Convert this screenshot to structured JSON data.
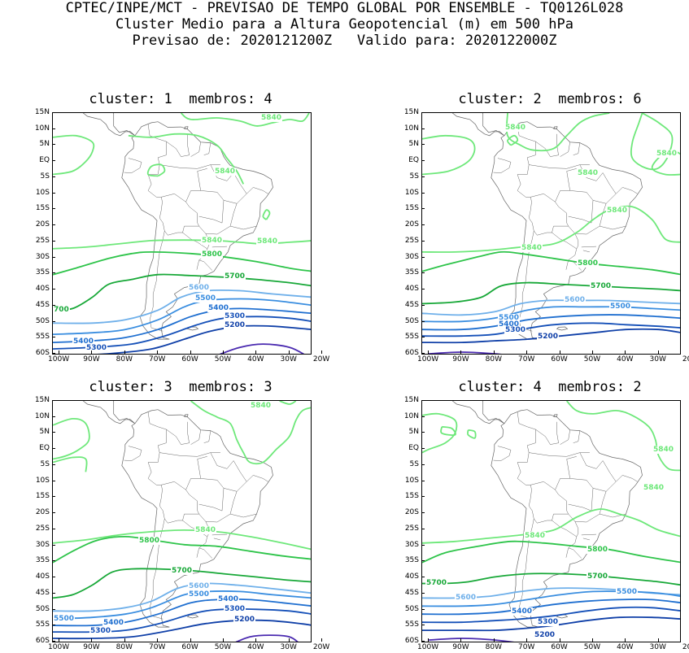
{
  "header": {
    "line1": "CPTEC/INPE/MCT - PREVISAO DE TEMPO GLOBAL POR ENSEMBLE - TQ0126L028",
    "line2": "Cluster Medio para a Altura Geopotencial (m) em 500 hPa",
    "line3": "Previsao de: 2020121200Z   Valido para: 2020122000Z"
  },
  "axes": {
    "lat_labels": [
      "15N",
      "10N",
      "5N",
      "EQ",
      "5S",
      "10S",
      "15S",
      "20S",
      "25S",
      "30S",
      "35S",
      "40S",
      "45S",
      "50S",
      "55S",
      "60S"
    ],
    "lon_labels": [
      "100W",
      "90W",
      "80W",
      "70W",
      "60W",
      "50W",
      "40W",
      "30W",
      "20W"
    ]
  },
  "colors": {
    "c5840": "#6ee87a",
    "c5800": "#2ec44a",
    "c5700": "#18a838",
    "c5600": "#6fb0ea",
    "c5500": "#3a8ee0",
    "c5400": "#1f6fd0",
    "c5300": "#1550b8",
    "c5200": "#1040a8",
    "c5100": "#4a2ab0",
    "land": "#666666"
  },
  "panels": [
    {
      "title": "cluster: 1  membros: 4",
      "labels": [
        {
          "text": "5840",
          "color": "#6ee87a"
        },
        {
          "text": "5840",
          "color": "#6ee87a"
        },
        {
          "text": "5840",
          "color": "#6ee87a"
        },
        {
          "text": "5840",
          "color": "#6ee87a"
        },
        {
          "text": "5800",
          "color": "#2ec44a"
        },
        {
          "text": "5700",
          "color": "#18a838"
        },
        {
          "text": "700",
          "color": "#18a838"
        },
        {
          "text": "5600",
          "color": "#6fb0ea"
        },
        {
          "text": "5500",
          "color": "#3a8ee0"
        },
        {
          "text": "5400",
          "color": "#1f6fd0"
        },
        {
          "text": "5300",
          "color": "#1550b8"
        },
        {
          "text": "5200",
          "color": "#1040a8"
        },
        {
          "text": "5400",
          "color": "#1f6fd0"
        },
        {
          "text": "5300",
          "color": "#1550b8"
        }
      ]
    },
    {
      "title": "cluster: 2  membros: 6",
      "labels": [
        {
          "text": "5840",
          "color": "#6ee87a"
        },
        {
          "text": "5840",
          "color": "#6ee87a"
        },
        {
          "text": "5840",
          "color": "#6ee87a"
        },
        {
          "text": "5840",
          "color": "#6ee87a"
        },
        {
          "text": "5840",
          "color": "#6ee87a"
        },
        {
          "text": "5800",
          "color": "#2ec44a"
        },
        {
          "text": "5700",
          "color": "#18a838"
        },
        {
          "text": "5600",
          "color": "#6fb0ea"
        },
        {
          "text": "5500",
          "color": "#3a8ee0"
        },
        {
          "text": "5500",
          "color": "#3a8ee0"
        },
        {
          "text": "5400",
          "color": "#1f6fd0"
        },
        {
          "text": "5300",
          "color": "#1550b8"
        },
        {
          "text": "5200",
          "color": "#1040a8"
        }
      ]
    },
    {
      "title": "cluster: 3  membros: 3",
      "labels": [
        {
          "text": "5840",
          "color": "#6ee87a"
        },
        {
          "text": "5840",
          "color": "#6ee87a"
        },
        {
          "text": "5800",
          "color": "#2ec44a"
        },
        {
          "text": "5700",
          "color": "#18a838"
        },
        {
          "text": "5600",
          "color": "#6fb0ea"
        },
        {
          "text": "5500",
          "color": "#3a8ee0"
        },
        {
          "text": "5500",
          "color": "#3a8ee0"
        },
        {
          "text": "5400",
          "color": "#1f6fd0"
        },
        {
          "text": "5400",
          "color": "#1f6fd0"
        },
        {
          "text": "5300",
          "color": "#1550b8"
        },
        {
          "text": "5300",
          "color": "#1550b8"
        },
        {
          "text": "5200",
          "color": "#1040a8"
        }
      ]
    },
    {
      "title": "cluster: 4  membros: 2",
      "labels": [
        {
          "text": "5840",
          "color": "#6ee87a"
        },
        {
          "text": "5840",
          "color": "#6ee87a"
        },
        {
          "text": "5840",
          "color": "#6ee87a"
        },
        {
          "text": "5800",
          "color": "#2ec44a"
        },
        {
          "text": "5700",
          "color": "#18a838"
        },
        {
          "text": "5700",
          "color": "#18a838"
        },
        {
          "text": "5600",
          "color": "#6fb0ea"
        },
        {
          "text": "5500",
          "color": "#3a8ee0"
        },
        {
          "text": "5400",
          "color": "#1f6fd0"
        },
        {
          "text": "5300",
          "color": "#1550b8"
        },
        {
          "text": "5200",
          "color": "#1040a8"
        }
      ]
    }
  ]
}
